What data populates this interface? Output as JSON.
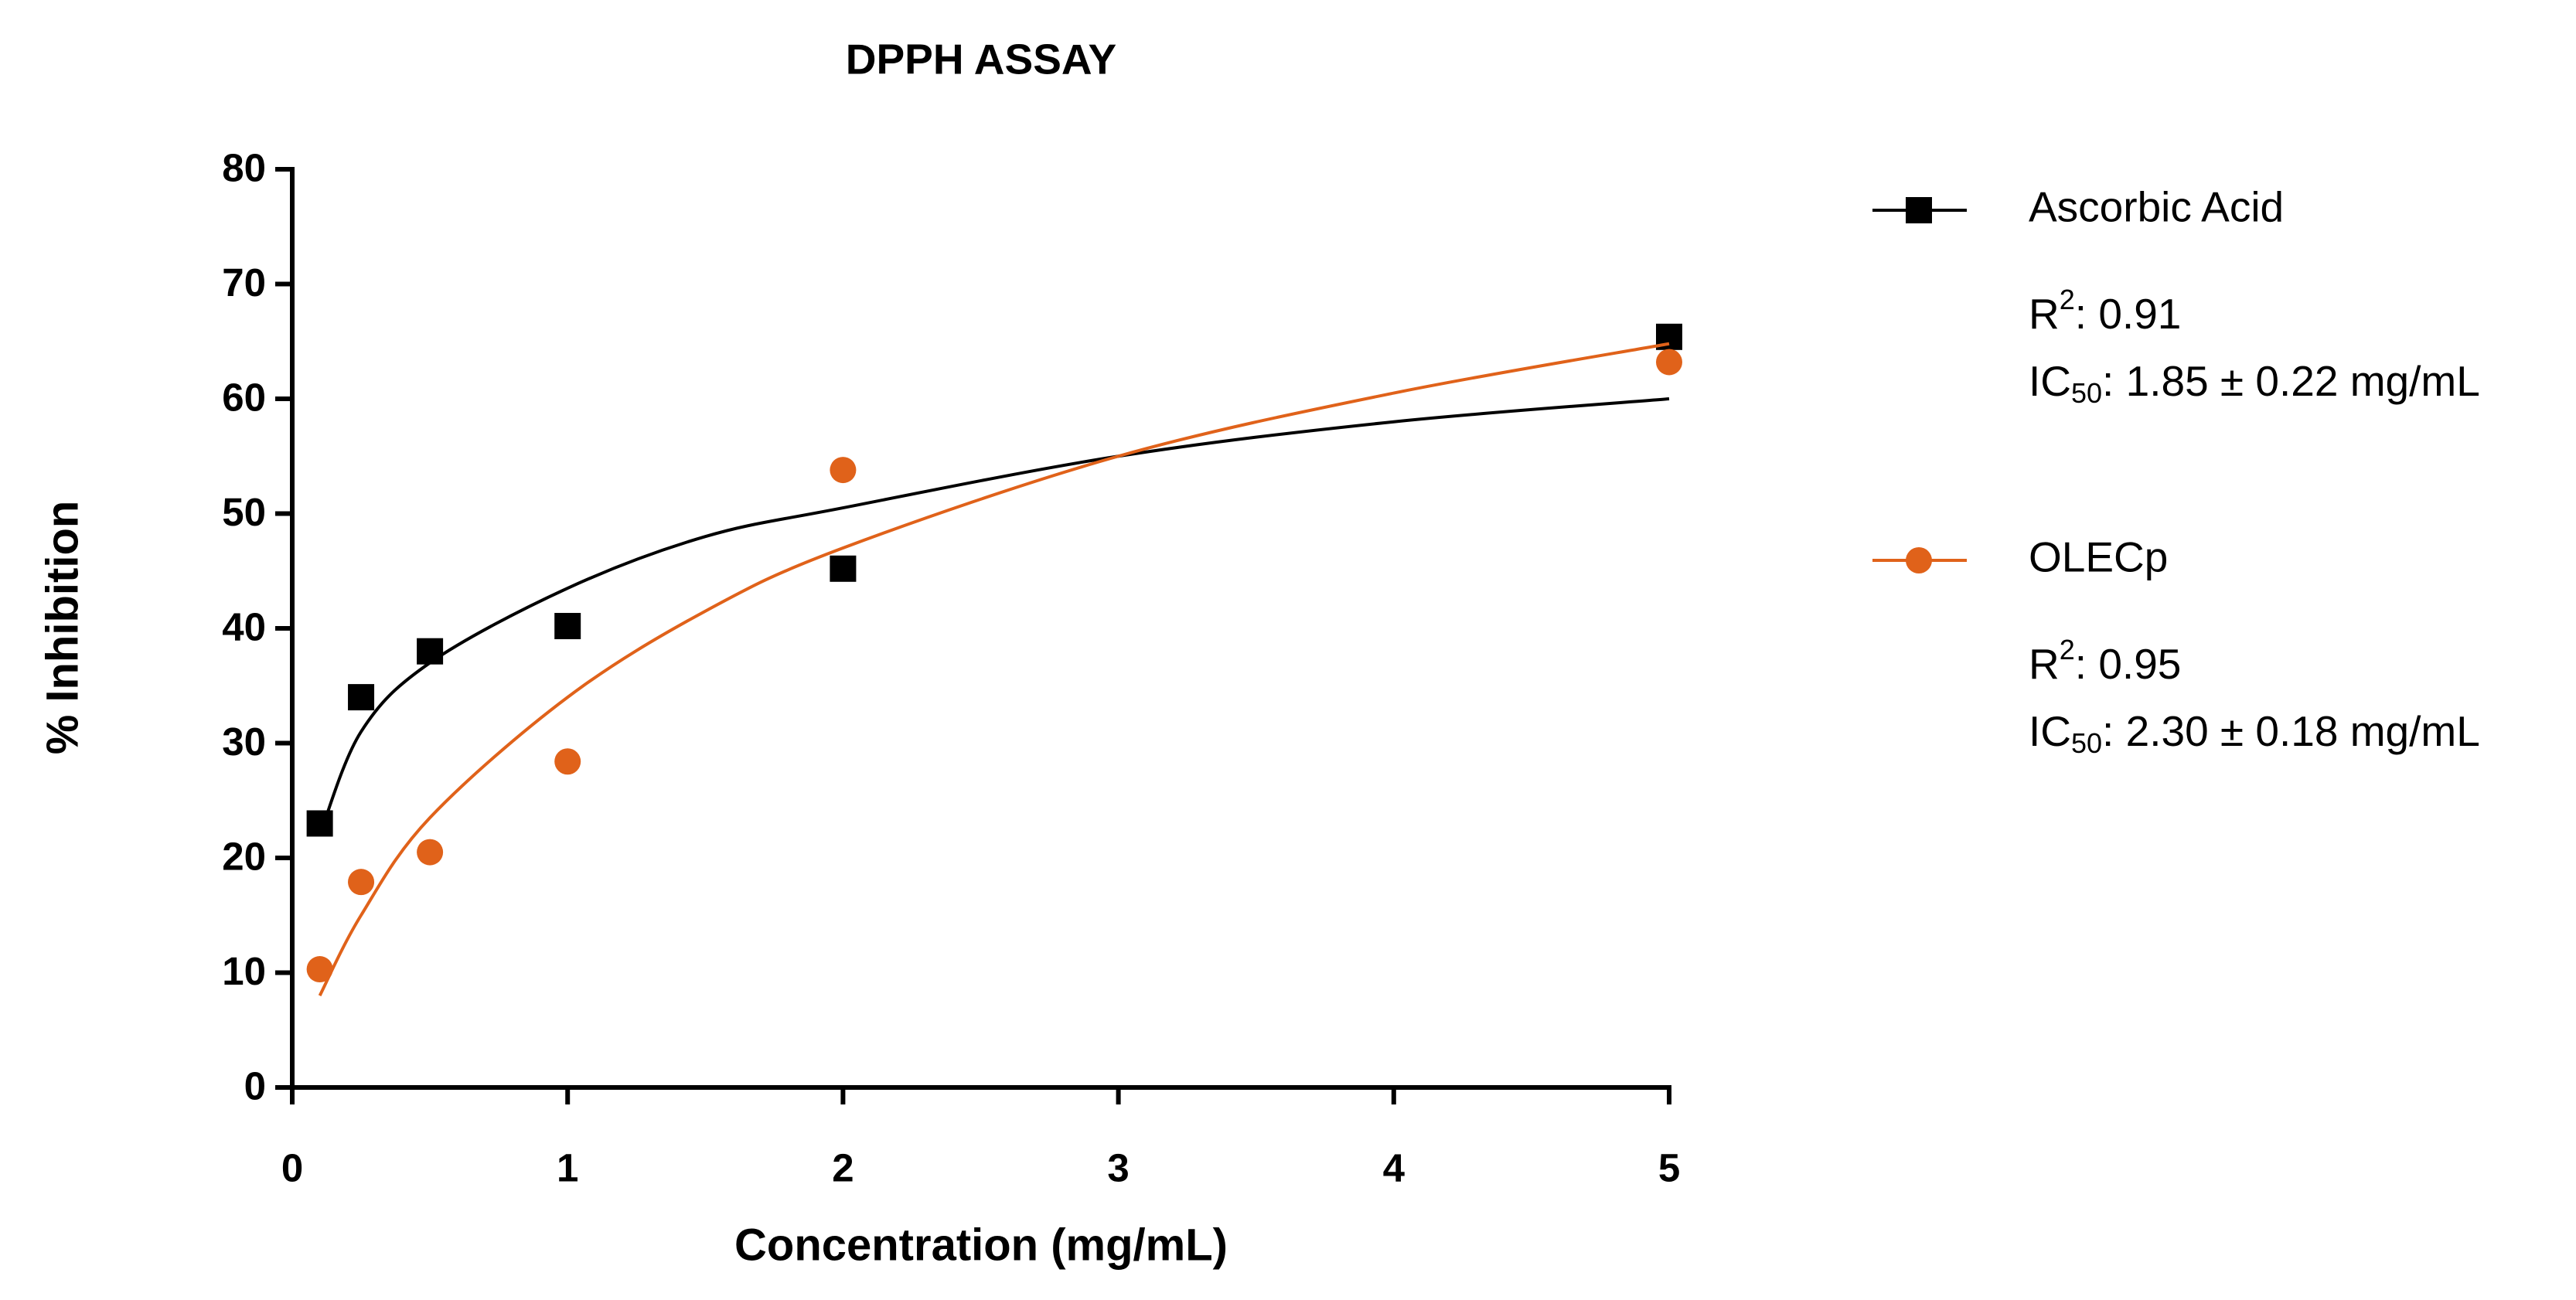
{
  "chart_data": {
    "type": "scatter",
    "title": "DPPH ASSAY",
    "x_label": "Concentration (mg/mL)",
    "y_label": "% Inhibition",
    "xlim": [
      0,
      5
    ],
    "xticks": [
      0,
      1,
      2,
      3,
      4,
      5
    ],
    "ylim": [
      0,
      80
    ],
    "yticks": [
      0,
      10,
      20,
      30,
      40,
      50,
      60,
      70,
      80
    ],
    "series": [
      {
        "name": "Ascorbic Acid",
        "color": "#000000",
        "marker": "square",
        "x": [
          0.1,
          0.25,
          0.5,
          1,
          2,
          5
        ],
        "values": [
          23,
          34,
          38,
          40.2,
          45.2,
          65.4
        ],
        "fit_x": [
          0.1,
          0.25,
          0.5,
          1,
          1.5,
          2,
          3,
          4,
          5
        ],
        "fit_values": [
          22,
          31,
          37,
          43.5,
          48,
          50.5,
          55,
          58,
          60
        ],
        "r2": [
          "R",
          "2",
          ": 0.91"
        ],
        "ic50": [
          "IC",
          "50",
          ": 1.85 ± 0.22 mg/mL"
        ]
      },
      {
        "name": "OLECp",
        "color": "#e0621a",
        "marker": "circle",
        "x": [
          0.1,
          0.25,
          0.5,
          1,
          2,
          5
        ],
        "values": [
          10.3,
          17.9,
          20.5,
          28.4,
          53.8,
          63.2
        ],
        "fit_x": [
          0.1,
          0.25,
          0.5,
          1,
          1.5,
          2,
          3,
          4,
          5
        ],
        "fit_values": [
          8,
          15,
          23.5,
          34,
          41.5,
          47,
          55,
          60.5,
          64.8
        ],
        "r2": [
          "R",
          "2",
          ": 0.95"
        ],
        "ic50": [
          "IC",
          "50",
          ": 2.30 ± 0.18 mg/mL"
        ]
      }
    ]
  }
}
